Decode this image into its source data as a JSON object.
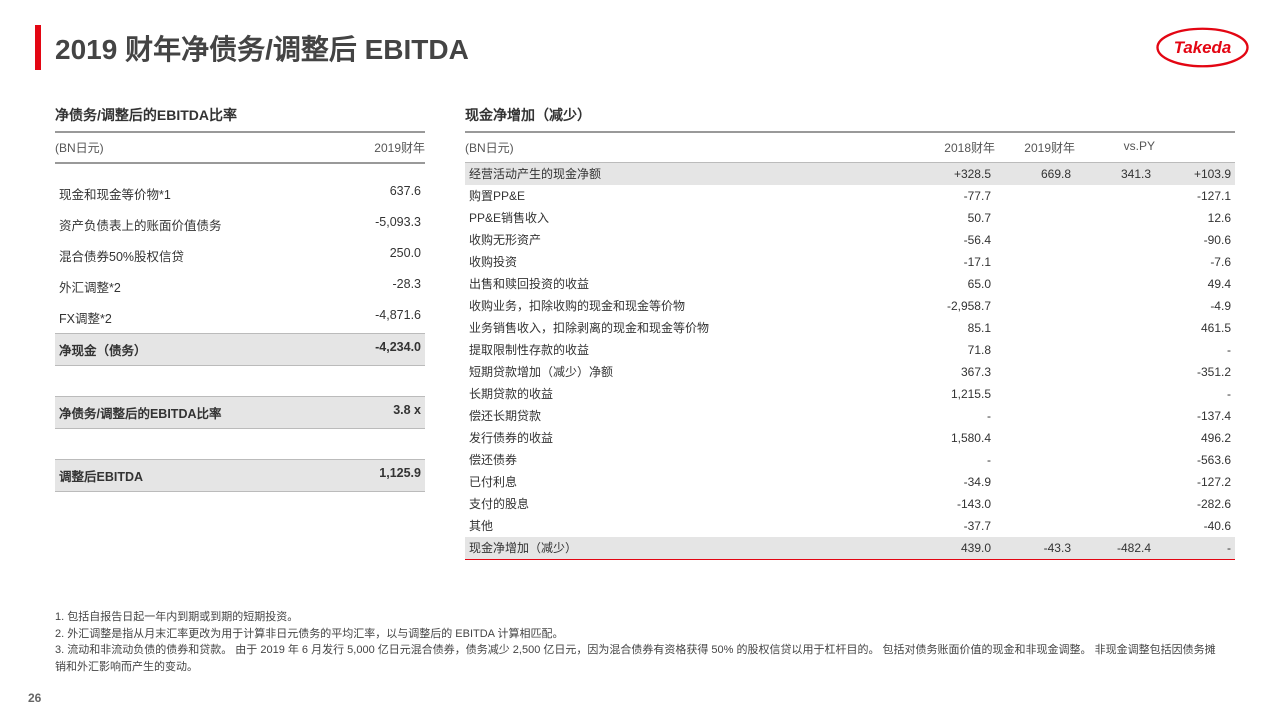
{
  "title": "2019 财年净债务/调整后 EBITDA",
  "page_number": "26",
  "left": {
    "section_title": "净债务/调整后的EBITDA比率",
    "unit_label": "(BN日元)",
    "year_label": "2019财年",
    "rows": [
      {
        "label": "现金和现金等价物*1",
        "value": "637.6"
      },
      {
        "label": "资产负债表上的账面价值债务",
        "value": "-5,093.3"
      },
      {
        "label": "混合债券50%股权信贷",
        "value": "250.0"
      },
      {
        "label": "外汇调整*2",
        "value": "-28.3"
      },
      {
        "label": "FX调整*2",
        "value": "-4,871.6"
      }
    ],
    "net_cash_label": "净现金（债务）",
    "net_cash_value": "-4,234.0",
    "ratio_label": "净债务/调整后的EBITDA比率",
    "ratio_value": "3.8 x",
    "ebitda_label": "调整后EBITDA",
    "ebitda_value": "1,125.9"
  },
  "right": {
    "section_title": "现金净增加（减少）",
    "unit_label": "(BN日元)",
    "col_2018": "2018财年",
    "col_2019": "2019财年",
    "col_vspy": "vs.PY",
    "op_row": {
      "label": "经营活动产生的现金净额",
      "v1": "+328.5",
      "v2": "669.8",
      "v3": "341.3",
      "v4": "+103.9"
    },
    "rows": [
      {
        "label": "购置PP&E",
        "v1": "-77.7",
        "v4": "-127.1"
      },
      {
        "label": "PP&E销售收入",
        "v1": "50.7",
        "v4": "12.6"
      },
      {
        "label": "收购无形资产",
        "v1": "-56.4",
        "v4": "-90.6"
      },
      {
        "label": "收购投资",
        "v1": "-17.1",
        "v4": "-7.6"
      },
      {
        "label": "出售和赎回投资的收益",
        "v1": "65.0",
        "v4": "49.4"
      },
      {
        "label": "收购业务，扣除收购的现金和现金等价物",
        "v1": "-2,958.7",
        "v4": "-4.9"
      },
      {
        "label": "业务销售收入，扣除剥离的现金和现金等价物",
        "v1": "85.1",
        "v4": "461.5"
      },
      {
        "label": "提取限制性存款的收益",
        "v1": "71.8",
        "v4": "-"
      },
      {
        "label": "短期贷款增加（减少）净额",
        "v1": "367.3",
        "v4": "-351.2"
      },
      {
        "label": "长期贷款的收益",
        "v1": "1,215.5",
        "v4": "-"
      },
      {
        "label": "偿还长期贷款",
        "v1": "-",
        "v4": "-137.4"
      },
      {
        "label": "发行债券的收益",
        "v1": "1,580.4",
        "v4": "496.2"
      },
      {
        "label": "偿还债券",
        "v1": "-",
        "v4": "-563.6"
      },
      {
        "label": "已付利息",
        "v1": "-34.9",
        "v4": "-127.2"
      },
      {
        "label": "支付的股息",
        "v1": "-143.0",
        "v4": "-282.6"
      },
      {
        "label": "其他",
        "v1": "-37.7",
        "v4": "-40.6"
      }
    ],
    "total_row": {
      "label": "现金净增加（减少）",
      "v1": "439.0",
      "v2": "-43.3",
      "v3": "-482.4",
      "v4": "-"
    }
  },
  "footnotes": {
    "n1": "1. 包括自报告日起一年内到期或到期的短期投资。",
    "n2": "2. 外汇调整是指从月末汇率更改为用于计算非日元债务的平均汇率，以与调整后的 EBITDA 计算相匹配。",
    "n3": "3. 流动和非流动负债的债券和贷款。 由于 2019 年 6 月发行 5,000 亿日元混合债券，债务减少 2,500 亿日元，因为混合债券有资格获得 50% 的股权信贷以用于杠杆目的。 包括对债务账面价值的现金和非现金调整。 非现金调整包括因债务摊销和外汇影响而产生的变动。"
  }
}
